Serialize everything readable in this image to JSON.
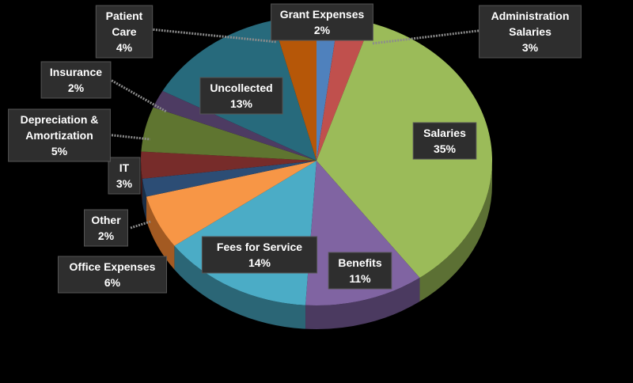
{
  "chart_data": {
    "type": "pie",
    "title": "",
    "start_angle_deg": -90,
    "slices": [
      {
        "label": "Grant Expenses",
        "value": 2,
        "display": "2%",
        "color": "#4f81bd",
        "side": "#2f4e72"
      },
      {
        "label": "Administration Salaries",
        "value": 3,
        "display": "3%",
        "color": "#c0504d",
        "side": "#7a2f2d"
      },
      {
        "label": "Salaries",
        "value": 35,
        "display": "35%",
        "color": "#9bbb59",
        "side": "#5c7034"
      },
      {
        "label": "Benefits",
        "value": 11,
        "display": "11%",
        "color": "#8064a2",
        "side": "#4b3a60"
      },
      {
        "label": "Fees for Service",
        "value": 14,
        "display": "14%",
        "color": "#4bacc6",
        "side": "#2b6676"
      },
      {
        "label": "Office Expenses",
        "value": 6,
        "display": "6%",
        "color": "#f79646",
        "side": "#a35a22"
      },
      {
        "label": "Other",
        "value": 2,
        "display": "2%",
        "color": "#2c4d75",
        "side": "#1a2e46"
      },
      {
        "label": "IT",
        "value": 3,
        "display": "3%",
        "color": "#772c2a",
        "side": "#481a19"
      },
      {
        "label": "Depreciation & Amortization",
        "value": 5,
        "display": "5%",
        "color": "#5f7530",
        "side": "#39461d"
      },
      {
        "label": "Insurance",
        "value": 2,
        "display": "2%",
        "color": "#4d3b62",
        "side": "#2e233b"
      },
      {
        "label": "Uncollected",
        "value": 13,
        "display": "13%",
        "color": "#276a7c",
        "side": "#17404a"
      },
      {
        "label": "Patient Care",
        "value": 4,
        "display": "4%",
        "color": "#b65708",
        "side": "#6d3405"
      }
    ]
  }
}
